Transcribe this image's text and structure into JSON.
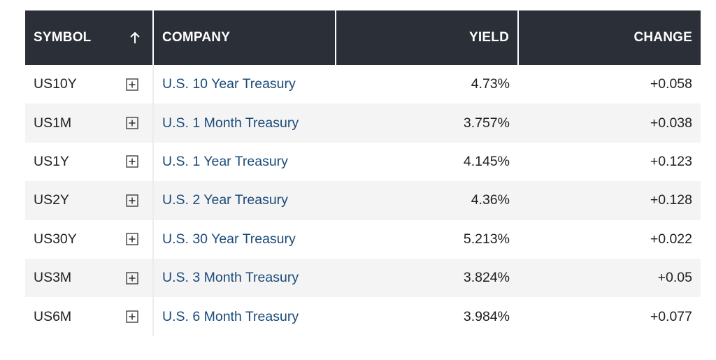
{
  "table": {
    "headers": {
      "symbol": "SYMBOL",
      "company": "COMPANY",
      "yield": "YIELD",
      "change": "CHANGE"
    },
    "sort_icon": "arrow-up-icon",
    "add_icon": "plus-box-icon",
    "colors": {
      "header_bg": "#2a2f38",
      "link": "#1a4a7a",
      "positive_change": "#1d6b1d",
      "alt_row": "#f4f4f4"
    },
    "rows": [
      {
        "symbol": "US10Y",
        "company": "U.S. 10 Year Treasury",
        "yield": "4.73%",
        "change": "+0.058"
      },
      {
        "symbol": "US1M",
        "company": "U.S. 1 Month Treasury",
        "yield": "3.757%",
        "change": "+0.038"
      },
      {
        "symbol": "US1Y",
        "company": "U.S. 1 Year Treasury",
        "yield": "4.145%",
        "change": "+0.123"
      },
      {
        "symbol": "US2Y",
        "company": "U.S. 2 Year Treasury",
        "yield": "4.36%",
        "change": "+0.128"
      },
      {
        "symbol": "US30Y",
        "company": "U.S. 30 Year Treasury",
        "yield": "5.213%",
        "change": "+0.022"
      },
      {
        "symbol": "US3M",
        "company": "U.S. 3 Month Treasury",
        "yield": "3.824%",
        "change": "+0.05"
      },
      {
        "symbol": "US6M",
        "company": "U.S. 6 Month Treasury",
        "yield": "3.984%",
        "change": "+0.077"
      }
    ]
  }
}
